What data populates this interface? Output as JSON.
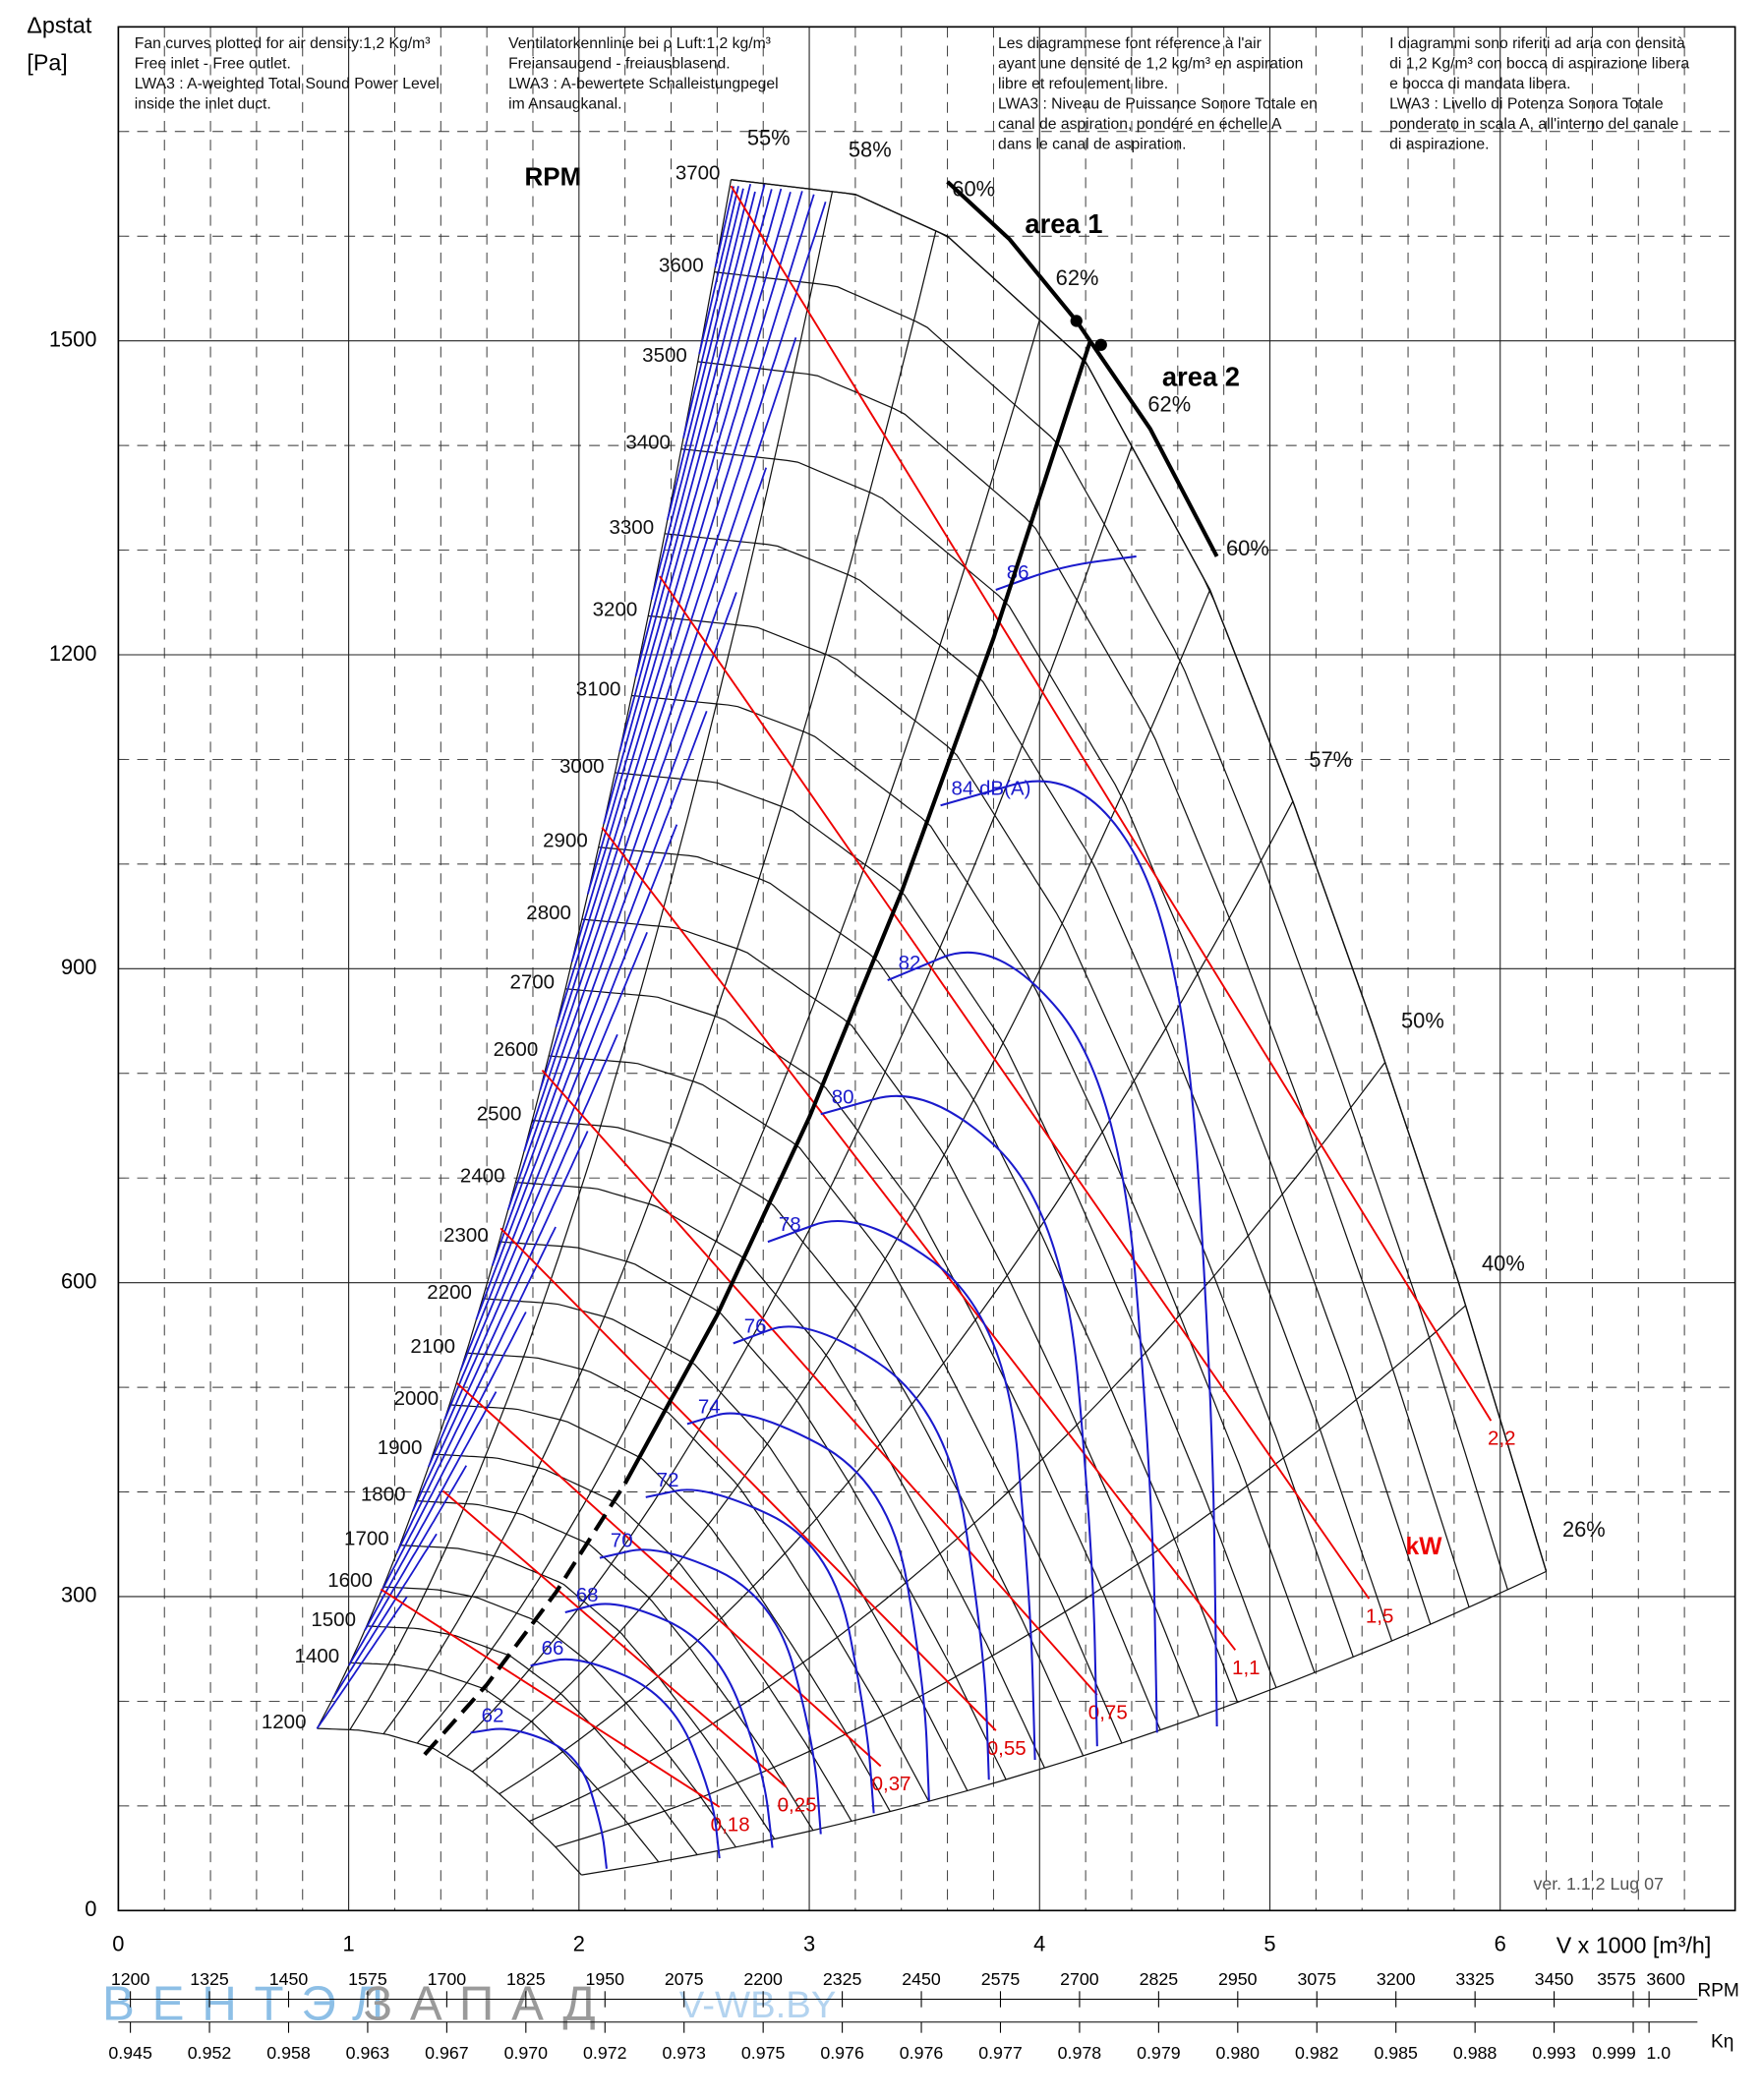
{
  "chart_data": {
    "type": "fan-curve",
    "y_label": "Δpstat",
    "y_unit": "[Pa]",
    "x_label": "V x 1000 [m³/h]",
    "rpm_title": "RPM",
    "version": "ver. 1.1.2 Lug 07",
    "watermark": [
      "ВЕНТЭЛ",
      "ЗАПАД",
      "V-WB.BY"
    ],
    "notes": [
      [
        "Fan curves plotted for air density:1,2 Kg/m³",
        "Free inlet - Free outlet.",
        "LWA3 : A-weighted Total Sound Power Level",
        "inside the inlet duct."
      ],
      [
        "Ventilatorkennlinie bei ρ Luft:1,2 kg/m³",
        "Freiansaugend - freiausblasend.",
        "LWA3 : A-bewertete Schalleistungpegel",
        "im Ansaugkanal."
      ],
      [
        "Les diagrammese font réference à l'air",
        "ayant une densité de 1,2 kg/m³ en aspiration",
        "libre et refoulement libre.",
        "LWA3 : Niveau de Puissance Sonore Totale en",
        "canal de aspiration, pondéré en échelle A",
        "dans le canal de aspiration."
      ],
      [
        "I diagrammi sono riferiti ad aria con densità",
        "di 1,2 Kg/m³ con bocca di aspirazione libera",
        "e bocca di mandata libera.",
        "LWA3 : Livello di Potenza Sonora Totale",
        "ponderato in scala A, all'interno del canale",
        "di aspirazione."
      ]
    ],
    "xlim": [
      0,
      7.02
    ],
    "ylim": [
      0,
      1800
    ],
    "xticks": [
      0,
      1,
      2,
      3,
      4,
      5,
      6
    ],
    "yticks": [
      0,
      300,
      600,
      900,
      1200,
      1500
    ],
    "xminor": [
      0.2,
      0.4,
      0.6,
      0.8,
      1.2,
      1.4,
      1.6,
      1.8,
      2.2,
      2.4,
      2.6,
      2.8,
      3.2,
      3.4,
      3.6,
      3.8,
      4.2,
      4.4,
      4.6,
      4.8,
      5.2,
      5.4,
      5.6,
      5.8,
      6.2,
      6.4,
      6.6,
      6.8
    ],
    "yminor": [
      100,
      200,
      400,
      500,
      700,
      800,
      1000,
      1100,
      1300,
      1400,
      1600,
      1700
    ],
    "grid": true,
    "rpm_curves": [
      3700,
      3600,
      3500,
      3400,
      3300,
      3200,
      3100,
      3000,
      2900,
      2800,
      2700,
      2600,
      2500,
      2400,
      2300,
      2200,
      2100,
      2000,
      1900,
      1800,
      1700,
      1600,
      1500,
      1400,
      1200
    ],
    "rpm_curve_shape": {
      "x": [
        2.66,
        3.2,
        3.6,
        4.2,
        4.74,
        5.1,
        5.44,
        5.82,
        6.2
      ],
      "y": [
        1654,
        1640,
        1600,
        1480,
        1262,
        1060,
        850,
        600,
        324
      ]
    },
    "efficiency": {
      "values": [
        55,
        58,
        60,
        62,
        62,
        60,
        57,
        50,
        40,
        26
      ],
      "value_labels": [
        "55%",
        "58%",
        "60%",
        "62%",
        "62%",
        "60%",
        "57%",
        "50%",
        "40%",
        "26%"
      ],
      "flow_at_max_rpm": [
        2.66,
        3.1,
        3.55,
        4.0,
        4.4,
        4.74,
        5.1,
        5.5,
        5.85,
        6.2
      ]
    },
    "power_lines": {
      "unit_label": "kW",
      "values": [
        0.18,
        0.25,
        0.37,
        0.55,
        0.75,
        1.1,
        1.5,
        2.2
      ],
      "value_labels": [
        "0,18",
        "0,25",
        "0,37",
        "0,55",
        "0,75",
        "1,1",
        "1,5",
        "2,2"
      ],
      "x": [
        [
          1.14,
          2.61
        ],
        [
          1.41,
          2.9
        ],
        [
          1.47,
          3.31
        ],
        [
          1.66,
          3.81
        ],
        [
          1.84,
          4.25
        ],
        [
          2.1,
          4.85
        ],
        [
          2.35,
          5.43
        ],
        [
          2.66,
          5.96
        ]
      ],
      "y": [
        [
          307,
          99
        ],
        [
          401,
          118
        ],
        [
          504,
          138
        ],
        [
          652,
          172
        ],
        [
          803,
          206
        ],
        [
          1035,
          249
        ],
        [
          1275,
          298
        ],
        [
          1648,
          468
        ]
      ]
    },
    "sound_curves": {
      "values": [
        62,
        66,
        68,
        70,
        72,
        74,
        76,
        78,
        80,
        82,
        84,
        86
      ],
      "value_labels": [
        "62",
        "66",
        "68",
        "70",
        "72",
        "74",
        "76",
        "78",
        "80",
        "82",
        "84 dB(A)",
        "86"
      ],
      "x": [
        [
          1.53,
          1.71,
          2.0,
          2.1,
          2.12
        ],
        [
          1.79,
          2.0,
          2.4,
          2.58,
          2.61
        ],
        [
          1.94,
          2.17,
          2.6,
          2.8,
          2.84
        ],
        [
          2.09,
          2.35,
          2.85,
          3.02,
          3.05
        ],
        [
          2.29,
          2.55,
          3.1,
          3.25,
          3.28
        ],
        [
          2.47,
          2.73,
          3.35,
          3.5,
          3.52
        ],
        [
          2.67,
          2.99,
          3.6,
          3.76,
          3.78
        ],
        [
          2.82,
          3.22,
          3.85,
          3.96,
          3.98
        ],
        [
          3.05,
          3.52,
          4.1,
          4.23,
          4.25
        ],
        [
          3.34,
          3.81,
          4.35,
          4.49,
          4.51
        ],
        [
          3.57,
          4.19,
          4.62,
          4.75,
          4.77
        ],
        [
          3.81,
          4.1,
          4.42
        ]
      ],
      "y": [
        [
          170,
          176,
          150,
          80,
          40
        ],
        [
          234,
          244,
          205,
          110,
          50
        ],
        [
          285,
          298,
          255,
          135,
          60
        ],
        [
          337,
          350,
          300,
          160,
          73
        ],
        [
          395,
          407,
          350,
          180,
          93
        ],
        [
          465,
          482,
          410,
          215,
          105
        ],
        [
          542,
          568,
          480,
          250,
          125
        ],
        [
          639,
          671,
          570,
          300,
          144
        ],
        [
          761,
          790,
          670,
          350,
          157
        ],
        [
          889,
          932,
          790,
          400,
          170
        ],
        [
          1056,
          1095,
          930,
          500,
          176
        ],
        [
          1262,
          1285,
          1294
        ]
      ]
    },
    "system_curve": {
      "x": [
        1.33,
        1.6,
        1.9,
        2.2,
        2.6,
        3.0,
        3.4,
        3.8,
        4.22
      ],
      "y": [
        149,
        216,
        304,
        408,
        569,
        758,
        973,
        1216,
        1500
      ]
    },
    "area_line": {
      "labels": [
        "area 1",
        "area 2"
      ],
      "x": [
        3.6,
        3.87,
        4.16,
        4.48,
        4.77
      ],
      "y": [
        1652,
        1597,
        1519,
        1416,
        1294
      ]
    },
    "rpm_scale": {
      "title": "RPM",
      "lim": [
        1181,
        3736
      ],
      "ticks": [
        1200,
        1325,
        1450,
        1575,
        1700,
        1825,
        1950,
        2075,
        2200,
        2325,
        2450,
        2575,
        2700,
        2825,
        2950,
        3075,
        3200,
        3325,
        3450,
        3575,
        3600
      ]
    },
    "k_eta_scale": {
      "title": "Kη",
      "ticks": [
        0.945,
        0.952,
        0.958,
        0.963,
        0.967,
        {
          "value": 0.97,
          "label": "0.970"
        },
        0.972,
        0.973,
        0.975,
        0.976,
        0.976,
        0.977,
        0.978,
        0.979,
        {
          "value": 0.98,
          "label": "0.980"
        },
        0.982,
        0.985,
        0.988,
        0.993,
        0.999,
        {
          "value": 1,
          "label": "1.0"
        }
      ]
    }
  }
}
